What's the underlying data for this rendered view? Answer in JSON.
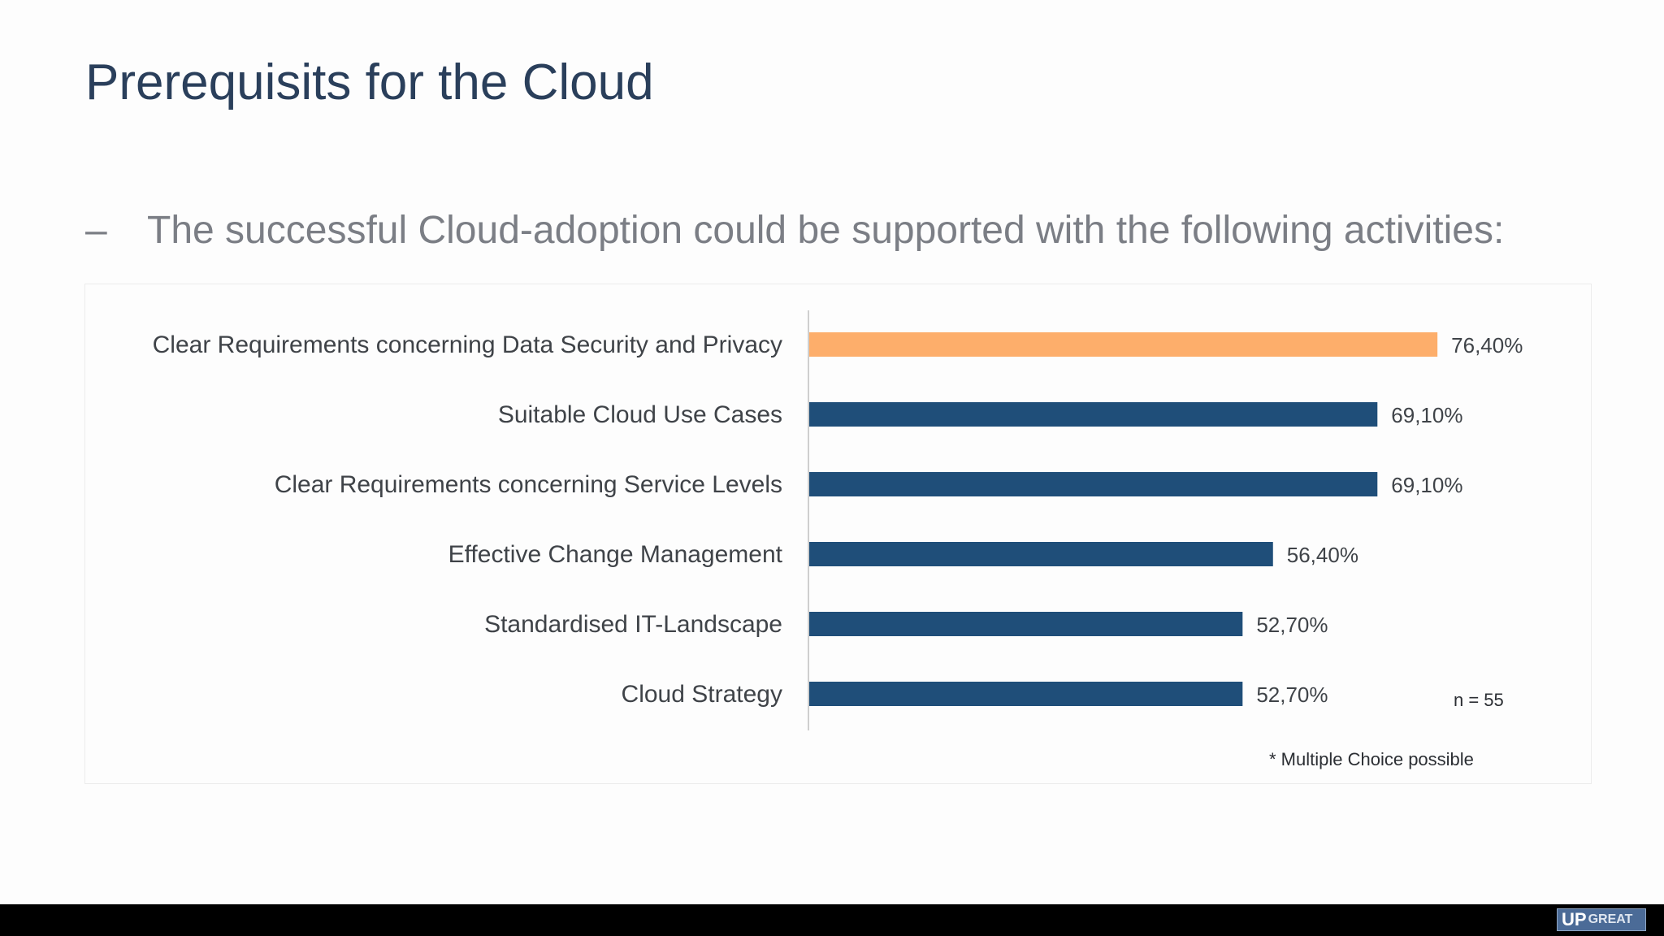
{
  "slide": {
    "title": "Prerequisits for the Cloud",
    "bullet_dash": "–",
    "bullet_text": "The successful Cloud-adoption could be supported with the following activities:"
  },
  "chart_data": {
    "type": "bar",
    "orientation": "horizontal",
    "categories": [
      "Clear Requirements concerning Data Security and Privacy",
      "Suitable Cloud Use Cases",
      "Clear Requirements concerning Service Levels",
      "Effective Change Management",
      "Standardised IT-Landscape",
      "Cloud Strategy"
    ],
    "values": [
      76.4,
      69.1,
      69.1,
      56.4,
      52.7,
      52.7
    ],
    "value_labels": [
      "76,40%",
      "69,10%",
      "69,10%",
      "56,40%",
      "52,70%",
      "52,70%"
    ],
    "colors": [
      "#fdae6b",
      "#1f4e79",
      "#1f4e79",
      "#1f4e79",
      "#1f4e79",
      "#1f4e79"
    ],
    "xlim": [
      0,
      100
    ],
    "grid": false,
    "annotations": [
      "n = 55",
      "* Multiple Choice possible"
    ]
  },
  "footer": {
    "logo_text": "UP",
    "logo_text_2": "GREAT"
  },
  "colors": {
    "title": "#2a3f5b",
    "bullet": "#7b7e85",
    "highlight_bar": "#fdae6b",
    "bar": "#1f4e79",
    "footer": "#000000"
  }
}
